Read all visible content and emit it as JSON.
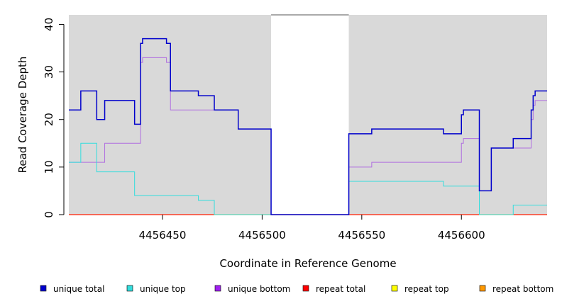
{
  "chart_data": {
    "type": "line",
    "title": "",
    "xlabel": "Coordinate in Reference Genome",
    "ylabel": "Read Coverage Depth",
    "xlim": [
      4456403,
      4456643
    ],
    "ylim": [
      0,
      42
    ],
    "x_ticks": [
      4456450,
      4456500,
      4456550,
      4456600
    ],
    "y_ticks": [
      0,
      10,
      20,
      30,
      40
    ],
    "grid": false,
    "background": "#d9d9d9",
    "gap_region": [
      4456504.5,
      4456543.5
    ],
    "legend_position": "bottom",
    "series": [
      {
        "name": "unique total",
        "color": "#0000cc",
        "width": 1.5,
        "steps": [
          [
            4456403,
            22
          ],
          [
            4456409,
            26
          ],
          [
            4456417,
            20
          ],
          [
            4456421,
            24
          ],
          [
            4456436,
            19
          ],
          [
            4456439,
            36
          ],
          [
            4456440,
            37
          ],
          [
            4456452,
            36
          ],
          [
            4456454,
            26
          ],
          [
            4456468,
            25
          ],
          [
            4456476,
            22
          ],
          [
            4456488,
            18
          ],
          [
            4456504.5,
            0
          ],
          [
            4456543.5,
            17
          ],
          [
            4456555,
            18
          ],
          [
            4456591,
            17
          ],
          [
            4456600,
            21
          ],
          [
            4456601,
            22
          ],
          [
            4456609,
            5
          ],
          [
            4456615,
            14
          ],
          [
            4456626,
            16
          ],
          [
            4456635,
            22
          ],
          [
            4456636,
            25
          ],
          [
            4456637,
            26
          ],
          [
            4456643,
            26
          ]
        ]
      },
      {
        "name": "unique top",
        "color": "#33dddd",
        "width": 1,
        "steps": [
          [
            4456403,
            11
          ],
          [
            4456409,
            15
          ],
          [
            4456417,
            9
          ],
          [
            4456436,
            4
          ],
          [
            4456468,
            3
          ],
          [
            4456476,
            0
          ],
          [
            4456504.5,
            0
          ],
          [
            4456543.5,
            7
          ],
          [
            4456591,
            6
          ],
          [
            4456609,
            0
          ],
          [
            4456626,
            2
          ],
          [
            4456643,
            2
          ]
        ]
      },
      {
        "name": "unique bottom",
        "color": "#b06ee0",
        "width": 1,
        "steps": [
          [
            4456403,
            11
          ],
          [
            4456421,
            15
          ],
          [
            4456439,
            32
          ],
          [
            4456440,
            33
          ],
          [
            4456452,
            32
          ],
          [
            4456454,
            22
          ],
          [
            4456488,
            18
          ],
          [
            4456504.5,
            0
          ],
          [
            4456543.5,
            10
          ],
          [
            4456555,
            11
          ],
          [
            4456600,
            15
          ],
          [
            4456601,
            16
          ],
          [
            4456609,
            5
          ],
          [
            4456615,
            14
          ],
          [
            4456635,
            20
          ],
          [
            4456636,
            23
          ],
          [
            4456637,
            24
          ],
          [
            4456643,
            24
          ]
        ]
      },
      {
        "name": "repeat total",
        "color": "#ff0000",
        "width": 1,
        "steps": [
          [
            4456403,
            0
          ],
          [
            4456643,
            0
          ]
        ]
      },
      {
        "name": "repeat top",
        "color": "#ffff00",
        "width": 1,
        "steps": [
          [
            4456403,
            0
          ],
          [
            4456643,
            0
          ]
        ]
      },
      {
        "name": "repeat bottom",
        "color": "#ff9900",
        "width": 1.2,
        "steps": [
          [
            4456403,
            0
          ],
          [
            4456643,
            0
          ]
        ]
      }
    ],
    "legend": [
      {
        "label": "unique total",
        "color": "#0000cc"
      },
      {
        "label": "unique top",
        "color": "#33dddd"
      },
      {
        "label": "unique bottom",
        "color": "#a020f0"
      },
      {
        "label": "repeat total",
        "color": "#ff0000"
      },
      {
        "label": "repeat top",
        "color": "#ffff00"
      },
      {
        "label": "repeat bottom",
        "color": "#ff9900"
      }
    ]
  }
}
